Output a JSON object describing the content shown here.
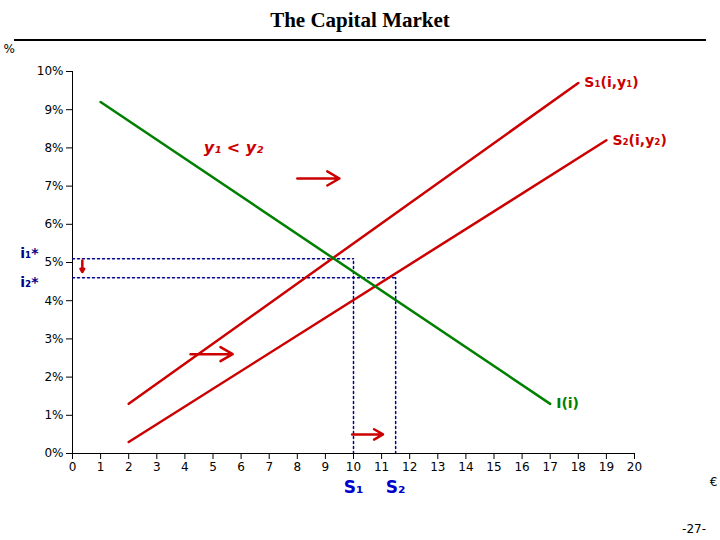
{
  "chart_data": {
    "type": "line",
    "title": "The Capital Market",
    "x_label": "€",
    "y_label": "%",
    "xlim": [
      0,
      20
    ],
    "ylim": [
      0,
      0.1
    ],
    "xticks": [
      0,
      1,
      2,
      3,
      4,
      5,
      6,
      7,
      8,
      9,
      10,
      11,
      12,
      13,
      14,
      15,
      16,
      17,
      18,
      19,
      20
    ],
    "yticks": [
      {
        "value": 0.0,
        "label": "0%"
      },
      {
        "value": 0.01,
        "label": "1%"
      },
      {
        "value": 0.02,
        "label": "2%"
      },
      {
        "value": 0.03,
        "label": "3%"
      },
      {
        "value": 0.04,
        "label": "4%"
      },
      {
        "value": 0.05,
        "label": "5%"
      },
      {
        "value": 0.06,
        "label": "6%"
      },
      {
        "value": 0.07,
        "label": "7%"
      },
      {
        "value": 0.08,
        "label": "8%"
      },
      {
        "value": 0.09,
        "label": "9%"
      },
      {
        "value": 0.1,
        "label": "10%"
      }
    ],
    "grid": false,
    "legend": false,
    "series": [
      {
        "name": "S₁(i,y₁)",
        "color": "#cc0000",
        "line_style": "solid",
        "x": [
          2,
          18
        ],
        "values": [
          0.013,
          0.097
        ]
      },
      {
        "name": "S₂(i,y₂)",
        "color": "#cc0000",
        "line_style": "solid",
        "x": [
          2,
          19
        ],
        "values": [
          0.003,
          0.082
        ]
      },
      {
        "name": "I(i)",
        "color": "#008000",
        "line_style": "solid",
        "x": [
          1,
          17
        ],
        "values": [
          0.092,
          0.013
        ]
      }
    ],
    "intersections": [
      {
        "x": 10.0,
        "y": 0.051,
        "y_label": "i₁*",
        "x_label": "S₁"
      },
      {
        "x": 11.5,
        "y": 0.046,
        "y_label": "i₂*",
        "x_label": "S₂"
      }
    ],
    "intersection_color": "#00008b",
    "intersection_line_style": "dotted",
    "intersection_x_label_color": "#0000cc",
    "annotations": [
      {
        "text": "y₁ < y₂",
        "color": "#cc0000"
      }
    ],
    "arrow_color": "#cc0000",
    "arrows": [
      {
        "x1": 8.0,
        "y1": 0.072,
        "x2": 9.5,
        "y2": 0.072
      },
      {
        "x1": 4.2,
        "y1": 0.026,
        "x2": 5.7,
        "y2": 0.026
      },
      {
        "x1": 9.95,
        "y1": 0.005,
        "x2": 11.05,
        "y2": 0.005
      },
      {
        "x1": 0.35,
        "y1": 0.0505,
        "x2": 0.35,
        "y2": 0.0475
      }
    ],
    "note": "-27-"
  }
}
